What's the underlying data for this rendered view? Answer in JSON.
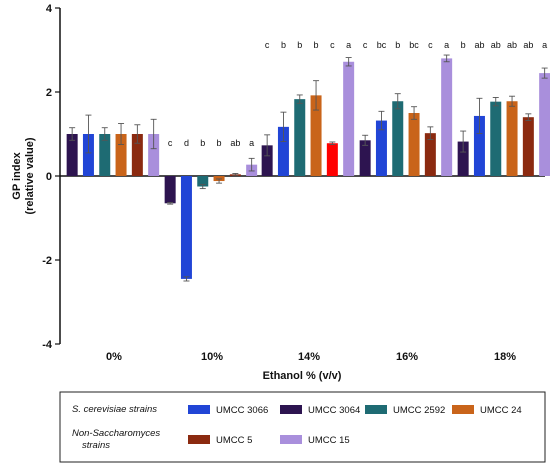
{
  "chart_data": {
    "type": "bar",
    "xlabel": "Ethanol % (v/v)",
    "ylabel_line1": "GP index",
    "ylabel_line2": "(relative value)",
    "ylim": [
      -4,
      4
    ],
    "yticks": [
      "4",
      "2",
      "0",
      "-2",
      "-4"
    ],
    "categories": [
      "0%",
      "10%",
      "14%",
      "16%",
      "18%"
    ],
    "series": [
      {
        "name": "UMCC 3064",
        "color": "#2d1450",
        "values": [
          1.0,
          -0.65,
          0.73,
          0.85,
          0.82
        ],
        "err": [
          0.15,
          0.02,
          0.25,
          0.12,
          0.25
        ],
        "sig": [
          "",
          "c",
          "c",
          "c",
          "b"
        ]
      },
      {
        "name": "UMCC 3066",
        "color": "#2145d6",
        "values": [
          1.0,
          -2.45,
          1.17,
          1.32,
          1.43
        ],
        "err": [
          0.45,
          0.05,
          0.35,
          0.22,
          0.42
        ],
        "sig": [
          "",
          "d",
          "b",
          "bc",
          "ab"
        ]
      },
      {
        "name": "UMCC 2592",
        "color": "#1e6b73",
        "values": [
          1.0,
          -0.25,
          1.83,
          1.78,
          1.77
        ],
        "err": [
          0.15,
          0.05,
          0.1,
          0.18,
          0.1
        ],
        "sig": [
          "",
          "b",
          "b",
          "b",
          "ab"
        ]
      },
      {
        "name": "UMCC 24",
        "color": "#c9641a",
        "values": [
          1.0,
          -0.12,
          1.92,
          1.5,
          1.78
        ],
        "err": [
          0.25,
          0.05,
          0.35,
          0.15,
          0.12
        ],
        "sig": [
          "",
          "b",
          "b",
          "bc",
          "ab"
        ]
      },
      {
        "name": "UMCC 5",
        "color": "#8b2a10",
        "values": [
          1.0,
          0.04,
          0.78,
          1.02,
          1.4
        ],
        "err": [
          0.22,
          0.02,
          0.03,
          0.15,
          0.08
        ],
        "sig": [
          "",
          "ab",
          "c",
          "c",
          "ab"
        ]
      },
      {
        "name": "UMCC 15",
        "color": "#a98fdc",
        "values": [
          1.0,
          0.27,
          2.72,
          2.8,
          2.45
        ],
        "err": [
          0.35,
          0.15,
          0.1,
          0.08,
          0.12
        ],
        "sig": [
          "",
          "a",
          "a",
          "a",
          "a"
        ]
      }
    ],
    "extra_bar_14": {
      "color": "#ff0000"
    },
    "grid": false,
    "legend": {
      "placement": "bottom",
      "group1_label": "S. cerevisiae strains",
      "group2_label_line1": "Non-Saccharomyces",
      "group2_label_line2": "strains",
      "row1": [
        "UMCC 3066",
        "UMCC 3064",
        "UMCC 2592",
        "UMCC 24"
      ],
      "row2": [
        "UMCC 5",
        "UMCC 15"
      ]
    }
  }
}
